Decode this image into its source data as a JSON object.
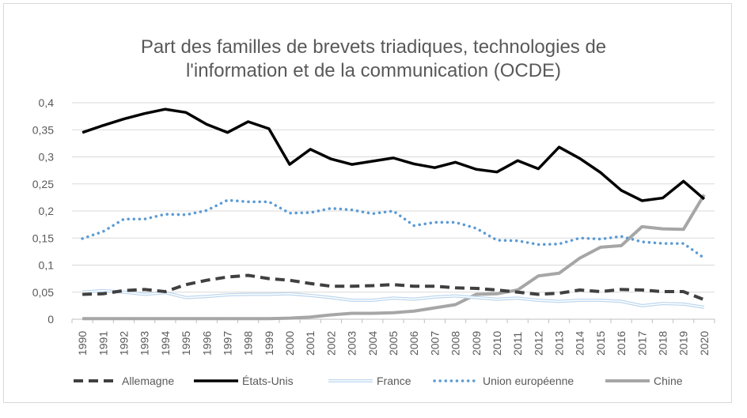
{
  "chart_data": {
    "type": "line",
    "title_lines": [
      "Part des familles de brevets triadiques, technologies de",
      "l'information et de la communication (OCDE)"
    ],
    "xlabel": "",
    "ylabel": "",
    "ylim": [
      0,
      0.4
    ],
    "yticks": [
      0,
      0.05,
      0.1,
      0.15,
      0.2,
      0.25,
      0.3,
      0.35,
      0.4
    ],
    "ytick_labels": [
      "0",
      "0,05",
      "0,1",
      "0,15",
      "0,2",
      "0,25",
      "0,3",
      "0,35",
      "0,4"
    ],
    "grid": true,
    "legend_position": "bottom",
    "categories": [
      "1990",
      "1991",
      "1992",
      "1993",
      "1994",
      "1995",
      "1996",
      "1997",
      "1998",
      "1999",
      "2000",
      "2001",
      "2002",
      "2003",
      "2004",
      "2005",
      "2006",
      "2007",
      "2008",
      "2009",
      "2010",
      "2011",
      "2012",
      "2013",
      "2014",
      "2015",
      "2016",
      "2017",
      "2018",
      "2019",
      "2020"
    ],
    "series": [
      {
        "name": "Allemagne",
        "style": "dashed",
        "color": "#404040",
        "values": [
          0.046,
          0.047,
          0.053,
          0.055,
          0.051,
          0.064,
          0.072,
          0.078,
          0.081,
          0.075,
          0.072,
          0.066,
          0.061,
          0.061,
          0.062,
          0.064,
          0.061,
          0.061,
          0.058,
          0.057,
          0.054,
          0.05,
          0.046,
          0.048,
          0.054,
          0.051,
          0.055,
          0.054,
          0.051,
          0.051,
          0.036
        ]
      },
      {
        "name": "États-Unis",
        "style": "solid-thick",
        "color": "#000000",
        "values": [
          0.345,
          0.358,
          0.37,
          0.38,
          0.388,
          0.382,
          0.36,
          0.345,
          0.365,
          0.352,
          0.286,
          0.314,
          0.296,
          0.286,
          0.292,
          0.298,
          0.287,
          0.28,
          0.29,
          0.277,
          0.272,
          0.293,
          0.278,
          0.318,
          0.297,
          0.271,
          0.238,
          0.219,
          0.224,
          0.255,
          0.222
        ]
      },
      {
        "name": "France",
        "style": "double",
        "color": "#bdd7ee",
        "values": [
          0.05,
          0.053,
          0.05,
          0.046,
          0.049,
          0.04,
          0.042,
          0.045,
          0.046,
          0.046,
          0.047,
          0.044,
          0.04,
          0.035,
          0.035,
          0.039,
          0.037,
          0.041,
          0.043,
          0.04,
          0.037,
          0.039,
          0.035,
          0.033,
          0.035,
          0.035,
          0.033,
          0.025,
          0.029,
          0.028,
          0.022
        ]
      },
      {
        "name": "Union européenne",
        "style": "dotted",
        "color": "#5b9bd5",
        "values": [
          0.149,
          0.162,
          0.185,
          0.185,
          0.194,
          0.193,
          0.201,
          0.22,
          0.217,
          0.217,
          0.196,
          0.197,
          0.205,
          0.202,
          0.195,
          0.2,
          0.173,
          0.179,
          0.179,
          0.168,
          0.146,
          0.145,
          0.138,
          0.139,
          0.15,
          0.148,
          0.153,
          0.143,
          0.14,
          0.14,
          0.113
        ]
      },
      {
        "name": "Chine",
        "style": "solid-gray",
        "color": "#a6a6a6",
        "values": [
          0.001,
          0.001,
          0.001,
          0.001,
          0.001,
          0.001,
          0.001,
          0.001,
          0.001,
          0.001,
          0.002,
          0.004,
          0.008,
          0.011,
          0.011,
          0.012,
          0.015,
          0.021,
          0.027,
          0.046,
          0.047,
          0.054,
          0.08,
          0.085,
          0.113,
          0.133,
          0.136,
          0.171,
          0.167,
          0.166,
          0.23
        ]
      }
    ]
  }
}
